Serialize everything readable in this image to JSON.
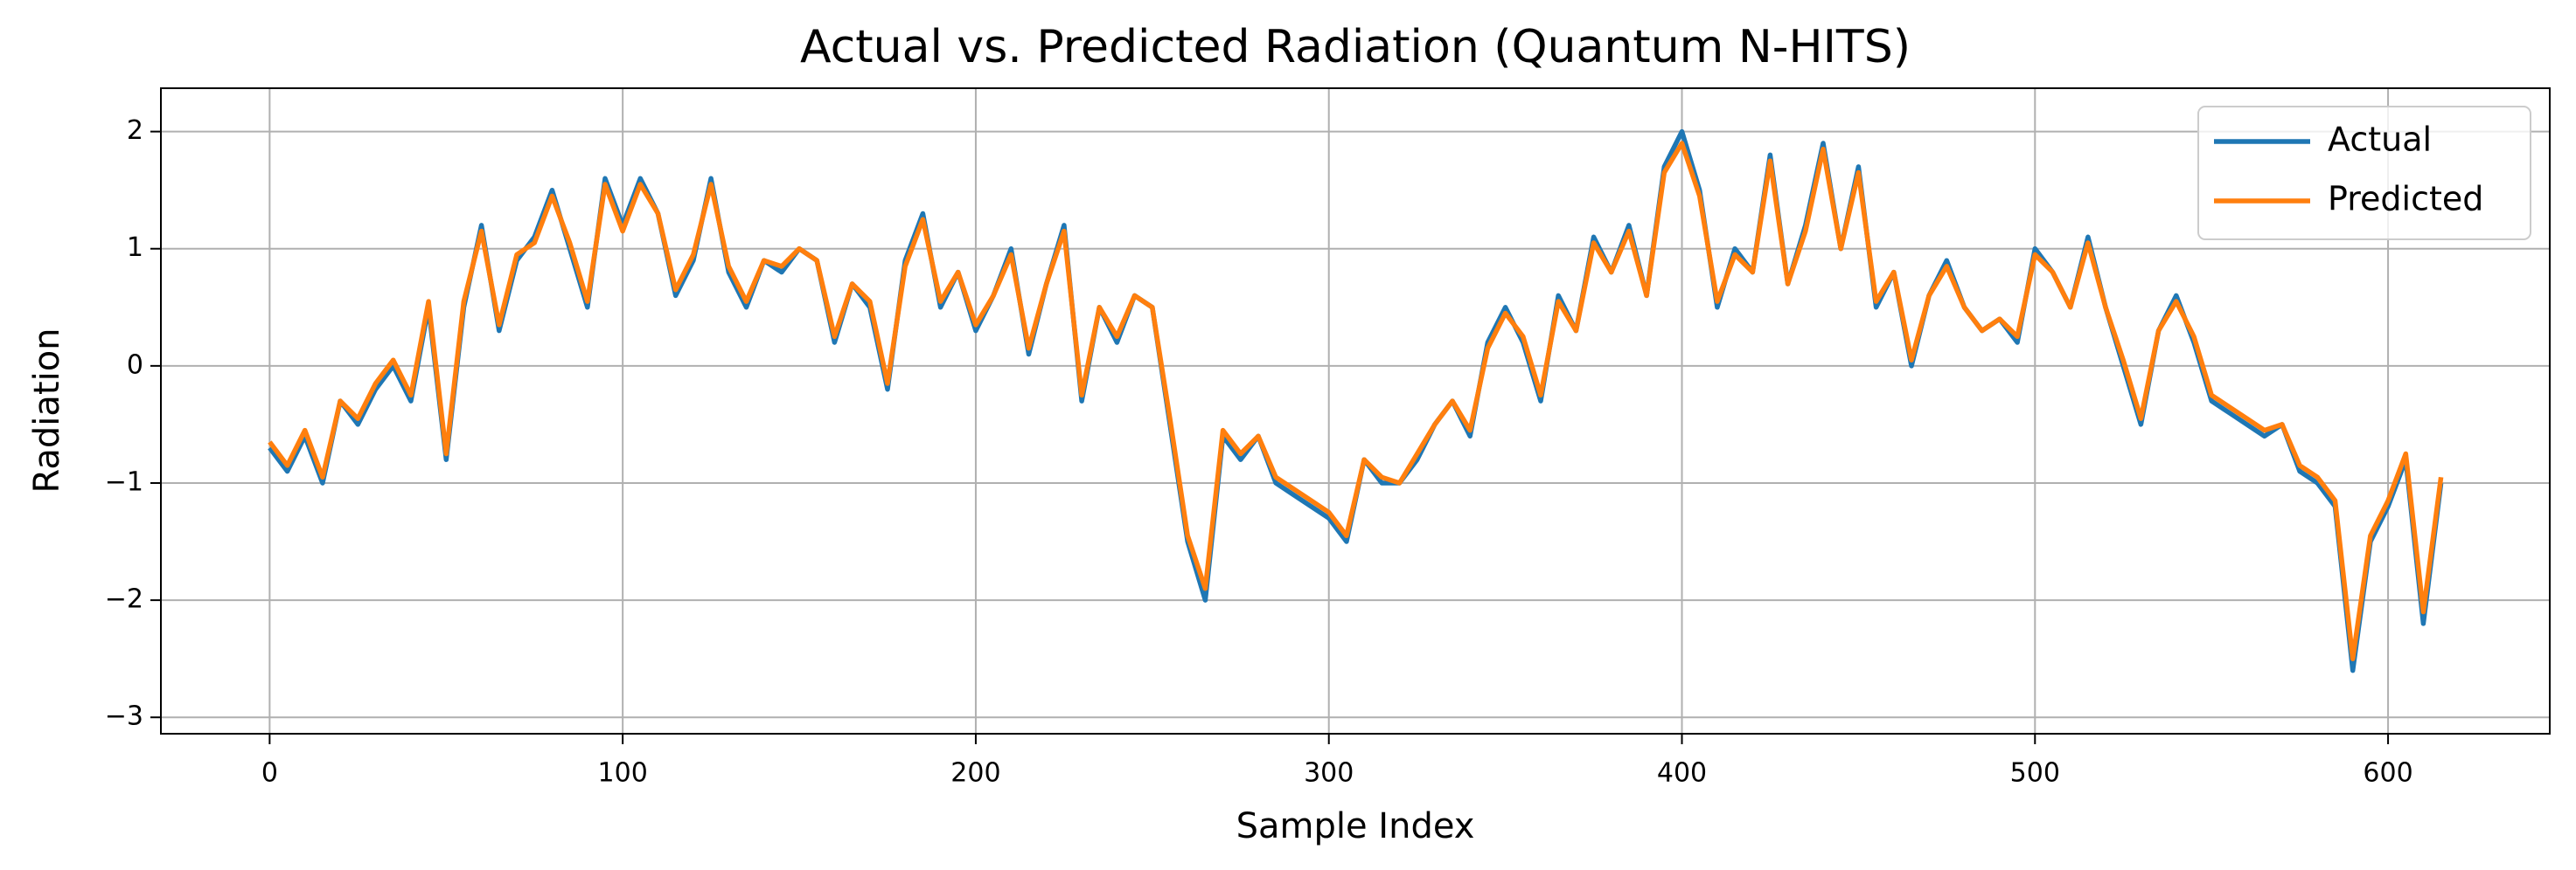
{
  "chart_data": {
    "type": "line",
    "title": "Actual vs. Predicted Radiation (Quantum N-HITS)",
    "x_label": "Sample Index",
    "y_label": "Radiation",
    "x": [
      0,
      5,
      10,
      15,
      20,
      25,
      30,
      35,
      40,
      45,
      50,
      55,
      60,
      65,
      70,
      75,
      80,
      85,
      90,
      95,
      100,
      105,
      110,
      115,
      120,
      125,
      130,
      135,
      140,
      145,
      150,
      155,
      160,
      165,
      170,
      175,
      180,
      185,
      190,
      195,
      200,
      205,
      210,
      215,
      220,
      225,
      230,
      235,
      240,
      245,
      250,
      255,
      260,
      265,
      270,
      275,
      280,
      285,
      290,
      295,
      300,
      305,
      310,
      315,
      320,
      325,
      330,
      335,
      340,
      345,
      350,
      355,
      360,
      365,
      370,
      375,
      380,
      385,
      390,
      395,
      400,
      405,
      410,
      415,
      420,
      425,
      430,
      435,
      440,
      445,
      450,
      455,
      460,
      465,
      470,
      475,
      480,
      485,
      490,
      495,
      500,
      505,
      510,
      515,
      520,
      525,
      530,
      535,
      540,
      545,
      550,
      555,
      560,
      565,
      570,
      575,
      580,
      585,
      590,
      595,
      600,
      605,
      610,
      615
    ],
    "series": [
      {
        "name": "Actual",
        "color": "#1f77b4",
        "values": [
          -0.7,
          -0.9,
          -0.6,
          -1.0,
          -0.3,
          -0.5,
          -0.2,
          0.0,
          -0.3,
          0.5,
          -0.8,
          0.5,
          1.2,
          0.3,
          0.9,
          1.1,
          1.5,
          1.0,
          0.5,
          1.6,
          1.2,
          1.6,
          1.3,
          0.6,
          0.9,
          1.6,
          0.8,
          0.5,
          0.9,
          0.8,
          1.0,
          0.9,
          0.2,
          0.7,
          0.5,
          -0.2,
          0.9,
          1.3,
          0.5,
          0.8,
          0.3,
          0.6,
          1.0,
          0.1,
          0.7,
          1.2,
          -0.3,
          0.5,
          0.2,
          0.6,
          0.5,
          -0.5,
          -1.5,
          -2.0,
          -0.6,
          -0.8,
          -0.6,
          -1.0,
          -1.1,
          -1.2,
          -1.3,
          -1.5,
          -0.8,
          -1.0,
          -1.0,
          -0.8,
          -0.5,
          -0.3,
          -0.6,
          0.2,
          0.5,
          0.2,
          -0.3,
          0.6,
          0.3,
          1.1,
          0.8,
          1.2,
          0.6,
          1.7,
          2.0,
          1.5,
          0.5,
          1.0,
          0.8,
          1.8,
          0.7,
          1.2,
          1.9,
          1.0,
          1.7,
          0.5,
          0.8,
          0.0,
          0.6,
          0.9,
          0.5,
          0.3,
          0.4,
          0.2,
          1.0,
          0.8,
          0.5,
          1.1,
          0.5,
          0.0,
          -0.5,
          0.3,
          0.6,
          0.2,
          -0.3,
          -0.4,
          -0.5,
          -0.6,
          -0.5,
          -0.9,
          -1.0,
          -1.2,
          -2.6,
          -1.5,
          -1.2,
          -0.8,
          -2.2,
          -1.0
        ]
      },
      {
        "name": "Predicted",
        "color": "#ff7f0e",
        "values": [
          -0.65,
          -0.85,
          -0.55,
          -0.95,
          -0.3,
          -0.45,
          -0.15,
          0.05,
          -0.25,
          0.55,
          -0.75,
          0.55,
          1.15,
          0.35,
          0.95,
          1.05,
          1.45,
          1.05,
          0.55,
          1.55,
          1.15,
          1.55,
          1.3,
          0.65,
          0.95,
          1.55,
          0.85,
          0.55,
          0.9,
          0.85,
          1.0,
          0.9,
          0.25,
          0.7,
          0.55,
          -0.15,
          0.85,
          1.25,
          0.55,
          0.8,
          0.35,
          0.6,
          0.95,
          0.15,
          0.7,
          1.15,
          -0.25,
          0.5,
          0.25,
          0.6,
          0.5,
          -0.45,
          -1.45,
          -1.9,
          -0.55,
          -0.75,
          -0.6,
          -0.95,
          -1.05,
          -1.15,
          -1.25,
          -1.45,
          -0.8,
          -0.95,
          -1.0,
          -0.75,
          -0.5,
          -0.3,
          -0.55,
          0.15,
          0.45,
          0.25,
          -0.25,
          0.55,
          0.3,
          1.05,
          0.8,
          1.15,
          0.6,
          1.65,
          1.9,
          1.45,
          0.55,
          0.95,
          0.8,
          1.75,
          0.7,
          1.15,
          1.85,
          1.0,
          1.65,
          0.55,
          0.8,
          0.05,
          0.6,
          0.85,
          0.5,
          0.3,
          0.4,
          0.25,
          0.95,
          0.8,
          0.5,
          1.05,
          0.5,
          0.05,
          -0.45,
          0.3,
          0.55,
          0.25,
          -0.25,
          -0.35,
          -0.45,
          -0.55,
          -0.5,
          -0.85,
          -0.95,
          -1.15,
          -2.5,
          -1.45,
          -1.15,
          -0.75,
          -2.1,
          -0.95
        ]
      }
    ],
    "xlim": [
      -30.8,
      645.8
    ],
    "ylim": [
      -3.14,
      2.37
    ],
    "xticks": [
      0,
      100,
      200,
      300,
      400,
      500,
      600
    ],
    "yticks": [
      {
        "value": -3,
        "label": "−3"
      },
      {
        "value": -2,
        "label": "−2"
      },
      {
        "value": -1,
        "label": "−1"
      },
      0,
      1,
      2
    ],
    "grid": true,
    "legend": "upper right"
  }
}
